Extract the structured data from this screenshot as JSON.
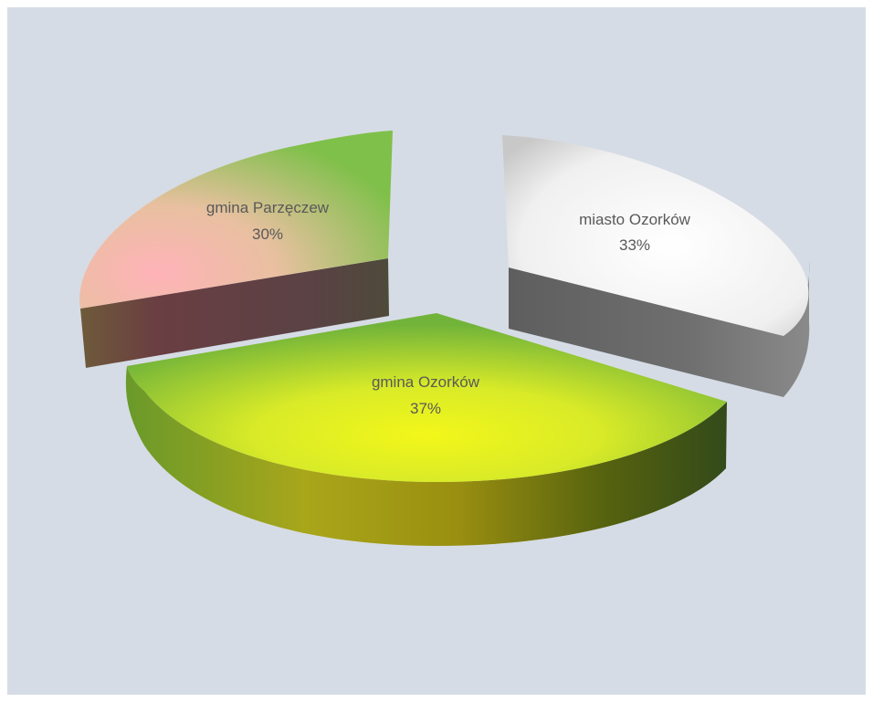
{
  "chart_data": {
    "type": "pie",
    "style": "3d-exploded",
    "slices": [
      {
        "label": "miasto Ozorków",
        "value": 33,
        "value_label": "33%",
        "color": "#f2f2f2",
        "side_color": "#6e6e6e"
      },
      {
        "label": "gmina Ozorków",
        "value": 37,
        "value_label": "37%",
        "color": "#e9f21a",
        "side_color": "#7a8a10"
      },
      {
        "label": "gmina Parzęczew",
        "value": 30,
        "value_label": "30%",
        "color": "#ffb6b6",
        "side_color": "#6b4646"
      }
    ],
    "title": "",
    "legend": "none",
    "colors": {
      "background": "#d6dce5",
      "label_text": "#595959"
    }
  }
}
